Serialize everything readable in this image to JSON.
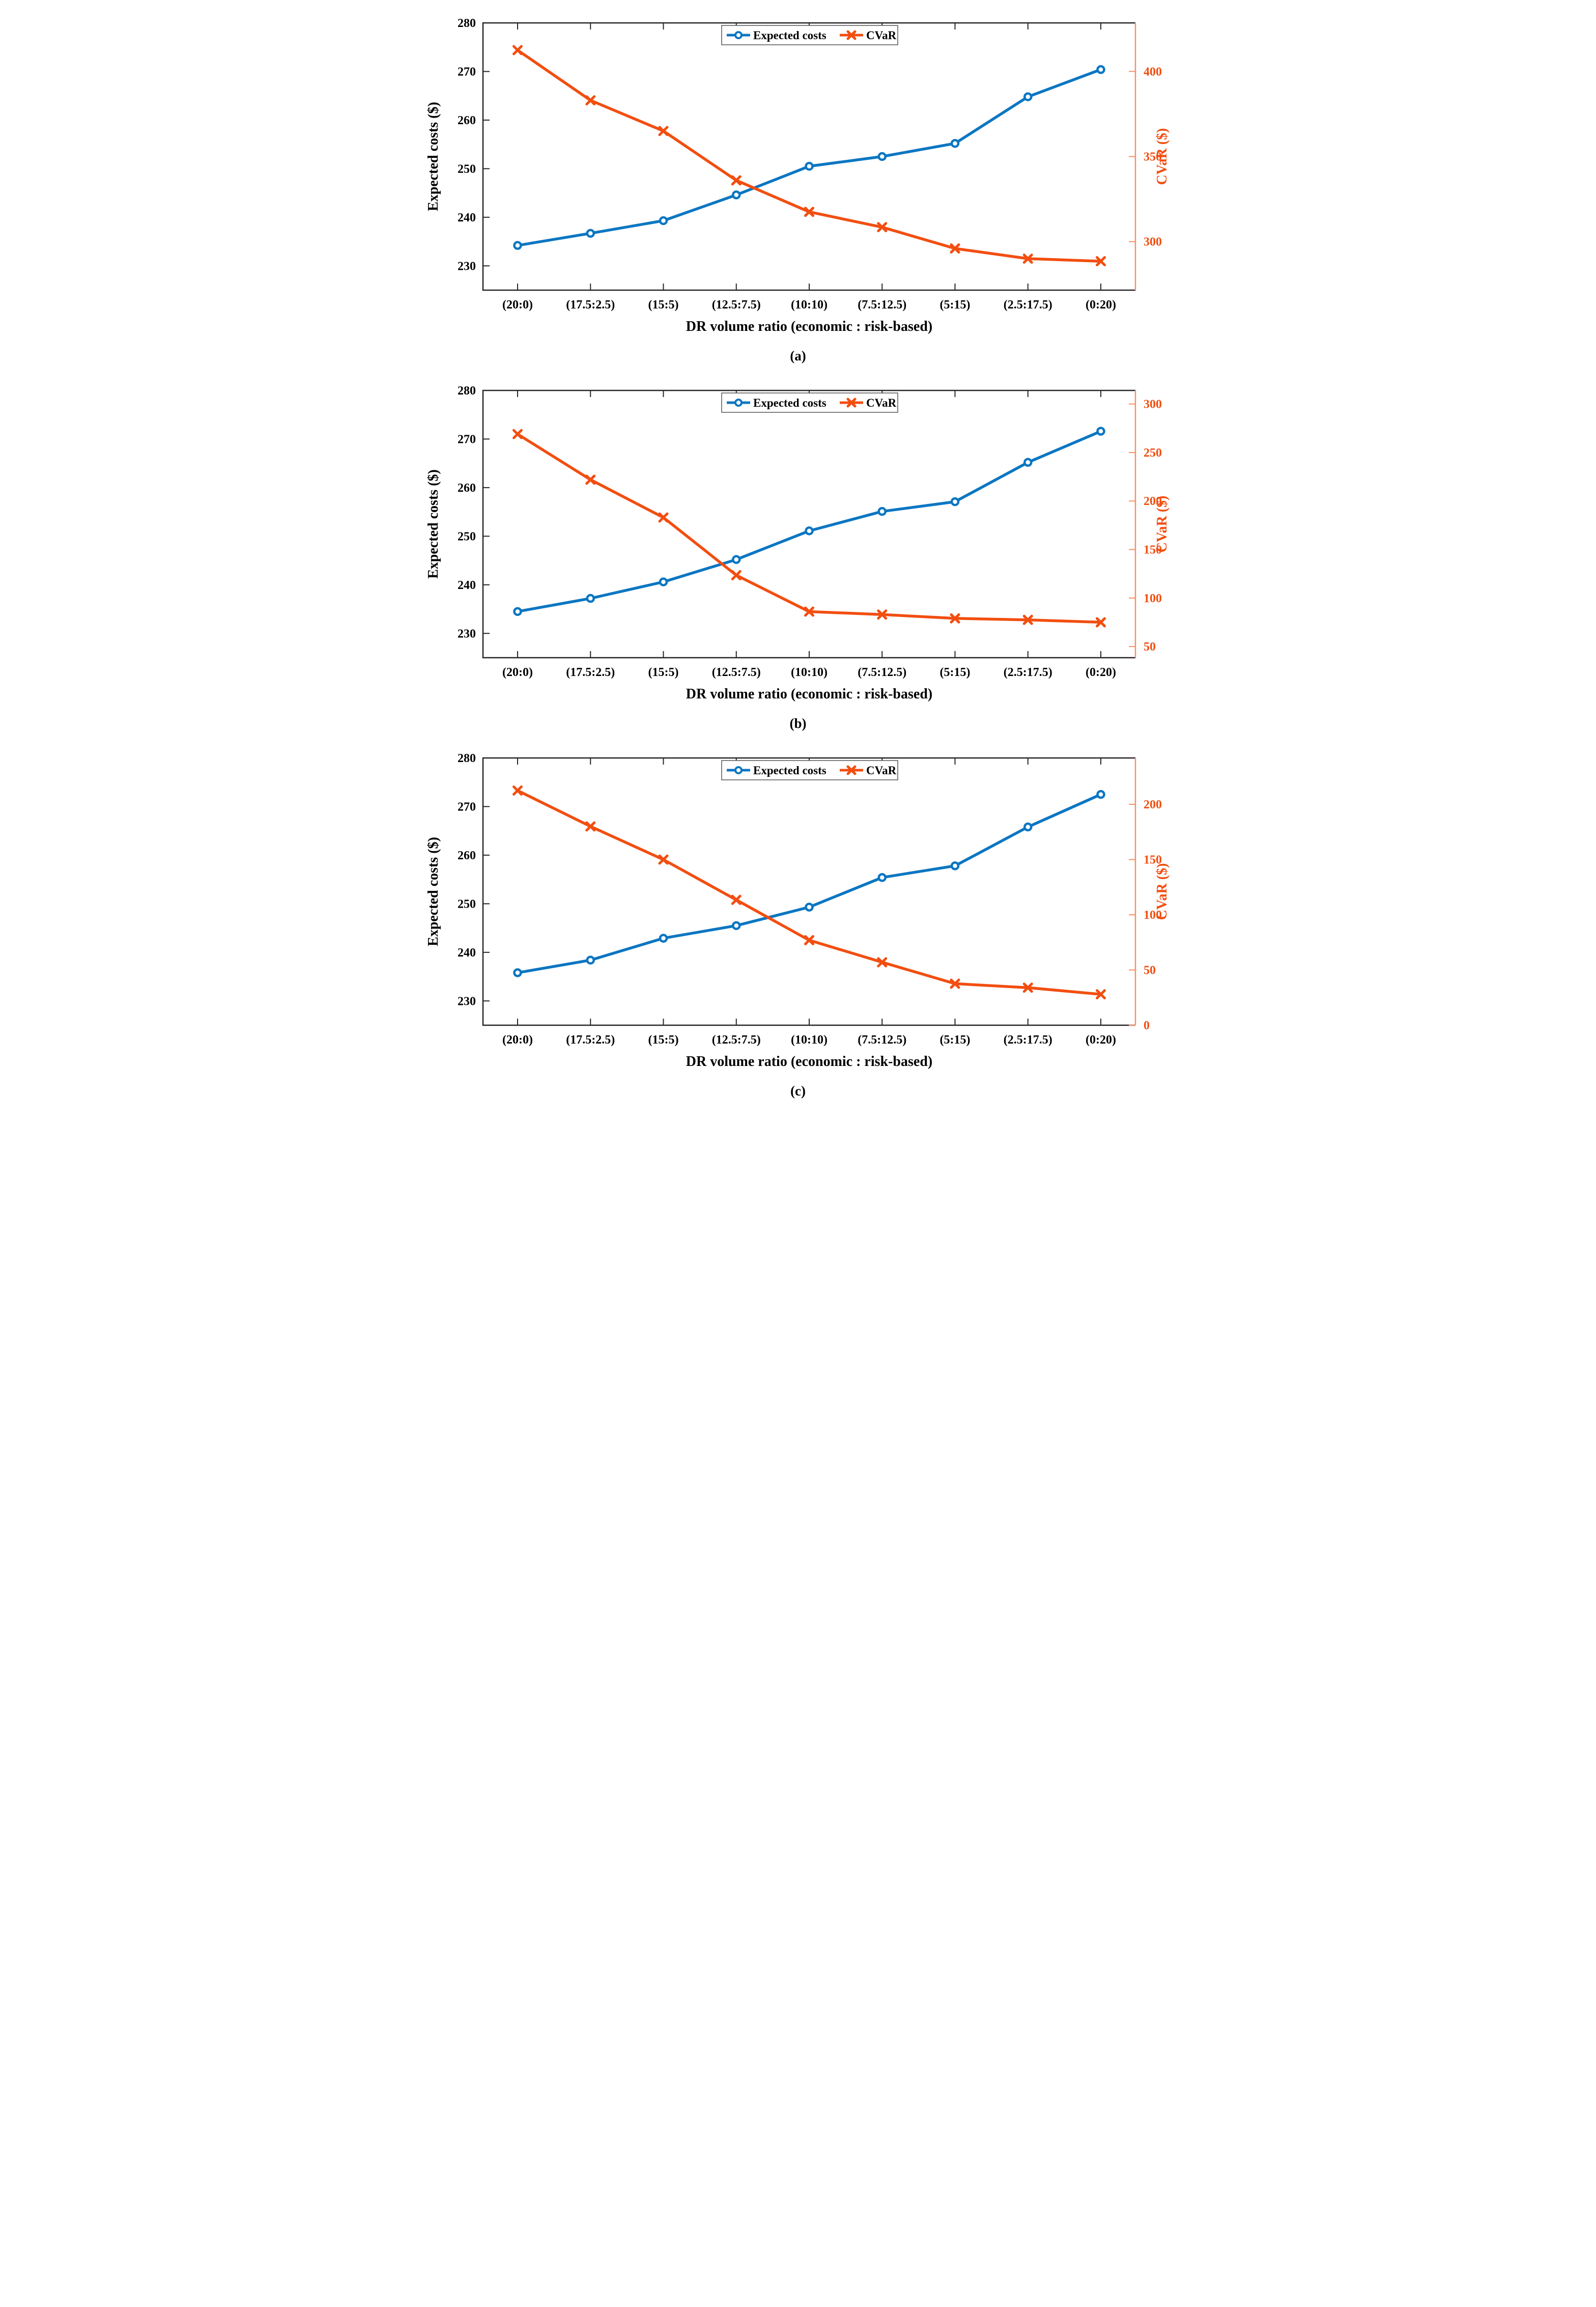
{
  "figure": {
    "background": "#ffffff",
    "spine_color": "#262626",
    "right_spine_color": "#FB8E68",
    "blue": "#0B76C2",
    "orange": "#F24E10",
    "legend_items": [
      "Expected costs",
      "CVaR"
    ]
  },
  "chart_data": [
    {
      "type": "line",
      "label": "(a)",
      "xlabel": "DR volume ratio (economic : risk-based)",
      "categories": [
        "(20:0)",
        "(17.5:2.5)",
        "(15:5)",
        "(12.5:7.5)",
        "(10:10)",
        "(7.5:12.5)",
        "(5:15)",
        "(2.5:17.5)",
        "(0:20)"
      ],
      "left_axis": {
        "label": "Expected costs ($)",
        "lim": [
          225,
          280
        ],
        "ticks": [
          230,
          240,
          250,
          260,
          270,
          280
        ]
      },
      "right_axis": {
        "label": "CVaR ($)",
        "lim": [
          271.5,
          428.5
        ],
        "ticks": [
          300,
          350,
          400
        ]
      },
      "legend": [
        "Expected costs",
        "CVaR"
      ],
      "series": [
        {
          "name": "Expected costs",
          "axis": "left",
          "color": "#0B76C2",
          "marker": "circle",
          "values": [
            234.2,
            236.7,
            239.3,
            244.6,
            250.5,
            252.5,
            255.2,
            264.8,
            270.4
          ]
        },
        {
          "name": "CVaR",
          "axis": "right",
          "color": "#F24E10",
          "marker": "x",
          "values": [
            412.5,
            383.0,
            365.0,
            336.0,
            317.5,
            308.5,
            296.0,
            290.0,
            288.5
          ]
        }
      ]
    },
    {
      "type": "line",
      "label": "(b)",
      "xlabel": "DR volume ratio (economic : risk-based)",
      "categories": [
        "(20:0)",
        "(17.5:2.5)",
        "(15:5)",
        "(12.5:7.5)",
        "(10:10)",
        "(7.5:12.5)",
        "(5:15)",
        "(2.5:17.5)",
        "(0:20)"
      ],
      "left_axis": {
        "label": "Expected costs ($)",
        "lim": [
          225,
          280
        ],
        "ticks": [
          230,
          240,
          250,
          260,
          270,
          280
        ]
      },
      "right_axis": {
        "label": "CVaR ($)",
        "lim": [
          38.5,
          314
        ],
        "ticks": [
          50,
          100,
          150,
          200,
          250,
          300
        ]
      },
      "legend": [
        "Expected costs",
        "CVaR"
      ],
      "series": [
        {
          "name": "Expected costs",
          "axis": "left",
          "color": "#0B76C2",
          "marker": "circle",
          "values": [
            234.5,
            237.2,
            240.6,
            245.2,
            251.1,
            255.1,
            257.1,
            265.2,
            271.6
          ]
        },
        {
          "name": "CVaR",
          "axis": "right",
          "color": "#F24E10",
          "marker": "x",
          "values": [
            269.0,
            222.0,
            183.0,
            123.5,
            86.0,
            83.0,
            79.0,
            77.5,
            75.0
          ]
        }
      ]
    },
    {
      "type": "line",
      "label": "(c)",
      "xlabel": "DR volume ratio (economic : risk-based)",
      "categories": [
        "(20:0)",
        "(17.5:2.5)",
        "(15:5)",
        "(12.5:7.5)",
        "(10:10)",
        "(7.5:12.5)",
        "(5:15)",
        "(2.5:17.5)",
        "(0:20)"
      ],
      "left_axis": {
        "label": "Expected costs ($)",
        "lim": [
          225,
          280
        ],
        "ticks": [
          230,
          240,
          250,
          260,
          270,
          280
        ]
      },
      "right_axis": {
        "label": "CVaR ($)",
        "lim": [
          0,
          242
        ],
        "ticks": [
          0,
          50,
          100,
          150,
          200
        ]
      },
      "legend": [
        "Expected costs",
        "CVaR"
      ],
      "series": [
        {
          "name": "Expected costs",
          "axis": "left",
          "color": "#0B76C2",
          "marker": "circle",
          "values": [
            235.8,
            238.4,
            242.9,
            245.5,
            249.3,
            255.4,
            257.8,
            265.8,
            272.5
          ]
        },
        {
          "name": "CVaR",
          "axis": "right",
          "color": "#F24E10",
          "marker": "x",
          "values": [
            212.5,
            180.0,
            150.0,
            113.5,
            77.0,
            57.0,
            37.6,
            34.0,
            28.0
          ]
        }
      ]
    }
  ]
}
